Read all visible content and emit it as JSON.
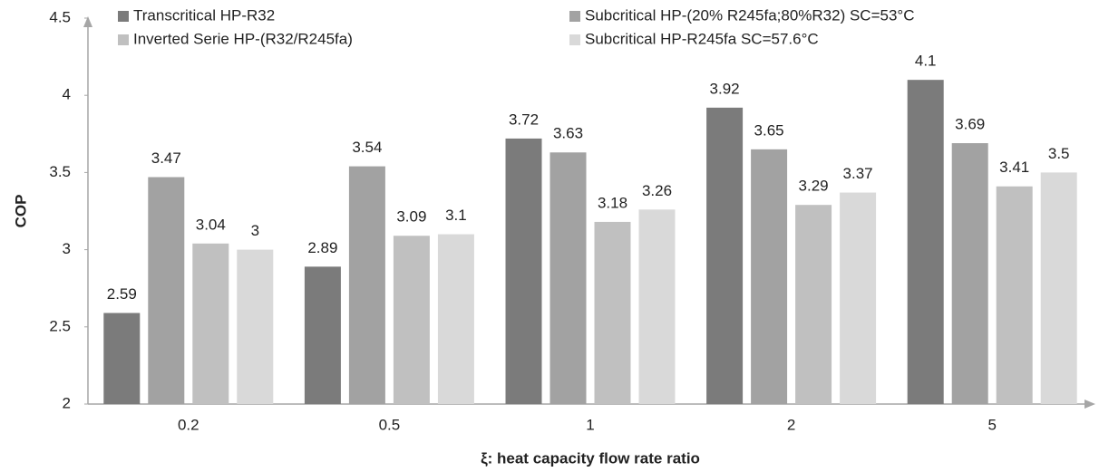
{
  "chart_data": {
    "type": "bar",
    "x_label": "ξ: heat capacity flow rate ratio",
    "y_label": "COP",
    "categories": [
      "0.2",
      "0.5",
      "1",
      "2",
      "5"
    ],
    "series": [
      {
        "name": "Transcritical HP-R32",
        "color": "#7b7b7b",
        "values": [
          2.59,
          2.89,
          3.72,
          3.92,
          4.1
        ]
      },
      {
        "name": "Subcritical HP-(20% R245fa;80%R32) SC=53°C",
        "color": "#a2a2a2",
        "values": [
          3.47,
          3.54,
          3.63,
          3.65,
          3.69
        ]
      },
      {
        "name": "Inverted Serie HP-(R32/R245fa)",
        "color": "#c0c0c0",
        "values": [
          3.04,
          3.09,
          3.18,
          3.29,
          3.41
        ]
      },
      {
        "name": "Subcritical HP-R245fa SC=57.6°C",
        "color": "#d9d9d9",
        "values": [
          3,
          3.1,
          3.26,
          3.37,
          3.5
        ]
      }
    ],
    "ylim": [
      2,
      4.5
    ],
    "yticks": [
      2,
      2.5,
      3,
      3.5,
      4,
      4.5
    ],
    "grid": false,
    "legend": "top"
  }
}
